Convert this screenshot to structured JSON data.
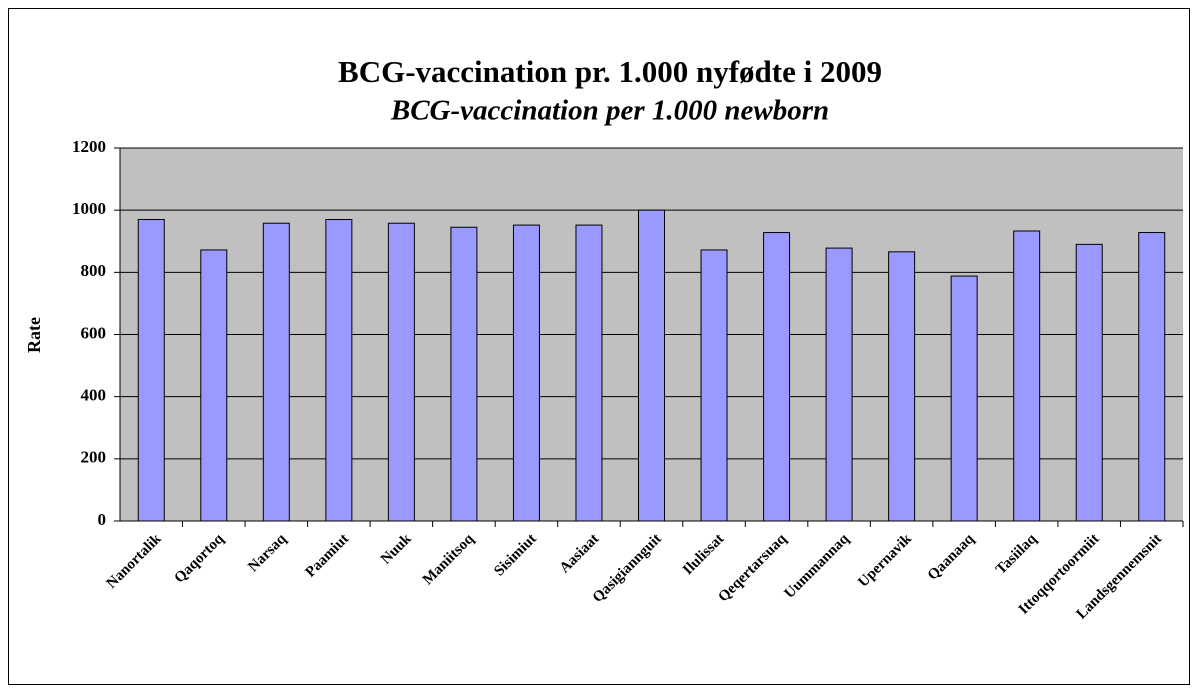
{
  "chart_data": {
    "type": "bar",
    "title": "BCG-vaccination pr. 1.000 nyfødte i 2009",
    "subtitle": "BCG-vaccination per 1.000 newborn",
    "ylabel": "Rate",
    "categories": [
      "Nanortalik",
      "Qaqortoq",
      "Narsaq",
      "Paamiut",
      "Nuuk",
      "Maniitsoq",
      "Sisimiut",
      "Aasiaat",
      "Qasigiannguit",
      "Ilulissat",
      "Qeqertarsuaq",
      "Uummannaq",
      "Upernavik",
      "Qaanaaq",
      "Tasiilaq",
      "Ittoqqortoormiit",
      "Landsgennemsnit"
    ],
    "values": [
      970,
      872,
      958,
      970,
      958,
      945,
      952,
      952,
      1000,
      872,
      928,
      878,
      866,
      788,
      933,
      890,
      928
    ],
    "color": "#9999ff",
    "ylim": [
      0,
      1200
    ],
    "yticks": [
      0,
      200,
      400,
      600,
      800,
      1000,
      1200
    ],
    "grid": true
  }
}
